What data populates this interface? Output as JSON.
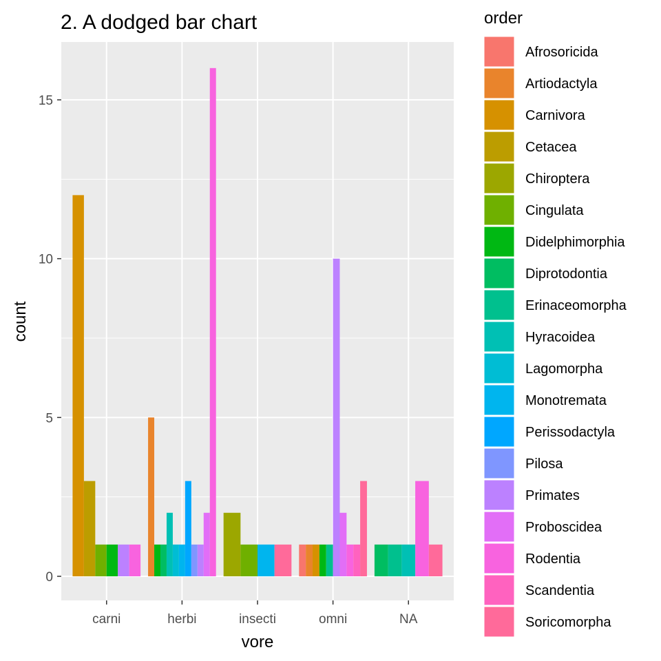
{
  "chart_data": {
    "type": "bar",
    "title": "2. A dodged bar chart",
    "xlabel": "vore",
    "ylabel": "count",
    "categories": [
      "carni",
      "herbi",
      "insecti",
      "omni",
      "NA"
    ],
    "ylim": [
      0,
      16.8
    ],
    "yticks": [
      0,
      5,
      10,
      15
    ],
    "grid": true,
    "legend_placement": "right",
    "legend_title": "order",
    "legend": [
      {
        "name": "Afrosoricida",
        "color": "#F8766D"
      },
      {
        "name": "Artiodactyla",
        "color": "#E9842C"
      },
      {
        "name": "Carnivora",
        "color": "#D69100"
      },
      {
        "name": "Cetacea",
        "color": "#BC9D00"
      },
      {
        "name": "Chiroptera",
        "color": "#9CA700"
      },
      {
        "name": "Cingulata",
        "color": "#6FB000"
      },
      {
        "name": "Didelphimorphia",
        "color": "#00B813"
      },
      {
        "name": "Diprotodontia",
        "color": "#00BD61"
      },
      {
        "name": "Erinaceomorpha",
        "color": "#00C08E"
      },
      {
        "name": "Hyracoidea",
        "color": "#00C0B4"
      },
      {
        "name": "Lagomorpha",
        "color": "#00BDD4"
      },
      {
        "name": "Monotremata",
        "color": "#00B5EE"
      },
      {
        "name": "Perissodactyla",
        "color": "#00A7FF"
      },
      {
        "name": "Pilosa",
        "color": "#7F96FF"
      },
      {
        "name": "Primates",
        "color": "#BC81FF"
      },
      {
        "name": "Proboscidea",
        "color": "#E26EF7"
      },
      {
        "name": "Rodentia",
        "color": "#F863DF"
      },
      {
        "name": "Scandentia",
        "color": "#FF62BF"
      },
      {
        "name": "Soricomorpha",
        "color": "#FF6A9A"
      }
    ],
    "groups": [
      {
        "category": "carni",
        "bars": [
          {
            "order": "Carnivora",
            "value": 12
          },
          {
            "order": "Cetacea",
            "value": 3
          },
          {
            "order": "Cingulata",
            "value": 1
          },
          {
            "order": "Didelphimorphia",
            "value": 1
          },
          {
            "order": "Primates",
            "value": 1
          },
          {
            "order": "Rodentia",
            "value": 1
          }
        ]
      },
      {
        "category": "herbi",
        "bars": [
          {
            "order": "Artiodactyla",
            "value": 5
          },
          {
            "order": "Didelphimorphia",
            "value": 1
          },
          {
            "order": "Diprotodontia",
            "value": 1
          },
          {
            "order": "Hyracoidea",
            "value": 2
          },
          {
            "order": "Lagomorpha",
            "value": 1
          },
          {
            "order": "Monotremata",
            "value": 1
          },
          {
            "order": "Perissodactyla",
            "value": 3
          },
          {
            "order": "Pilosa",
            "value": 1
          },
          {
            "order": "Primates",
            "value": 1
          },
          {
            "order": "Proboscidea",
            "value": 2
          },
          {
            "order": "Rodentia",
            "value": 16
          }
        ]
      },
      {
        "category": "insecti",
        "bars": [
          {
            "order": "Chiroptera",
            "value": 2
          },
          {
            "order": "Cingulata",
            "value": 1
          },
          {
            "order": "Monotremata",
            "value": 1
          },
          {
            "order": "Soricomorpha",
            "value": 1
          }
        ]
      },
      {
        "category": "omni",
        "bars": [
          {
            "order": "Afrosoricida",
            "value": 1
          },
          {
            "order": "Artiodactyla",
            "value": 1
          },
          {
            "order": "Carnivora",
            "value": 1
          },
          {
            "order": "Didelphimorphia",
            "value": 1
          },
          {
            "order": "Erinaceomorpha",
            "value": 1
          },
          {
            "order": "Primates",
            "value": 10
          },
          {
            "order": "Proboscidea",
            "value": 2
          },
          {
            "order": "Rodentia",
            "value": 1
          },
          {
            "order": "Scandentia",
            "value": 1
          },
          {
            "order": "Soricomorpha",
            "value": 3
          }
        ]
      },
      {
        "category": "NA",
        "bars": [
          {
            "order": "Diprotodontia",
            "value": 1
          },
          {
            "order": "Erinaceomorpha",
            "value": 1
          },
          {
            "order": "Hyracoidea",
            "value": 1
          },
          {
            "order": "Rodentia",
            "value": 3
          },
          {
            "order": "Soricomorpha",
            "value": 1
          }
        ]
      }
    ]
  }
}
